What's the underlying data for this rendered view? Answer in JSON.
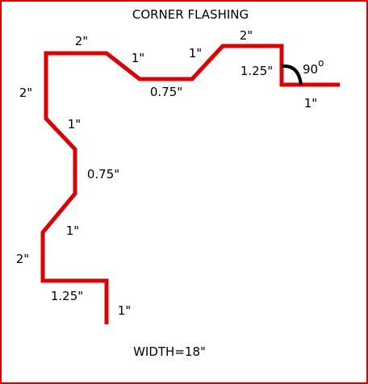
{
  "title": "CORNER FLASHING",
  "footer": "WIDTH=18\"",
  "angle_label": "90",
  "degree_symbol": "o",
  "colors": {
    "frame": "#e00000",
    "profile": "#e00000",
    "angle_arc": "#000000",
    "text": "#000000",
    "background": "#ffffff"
  },
  "dimensions": {
    "top_left_2": "2\"",
    "top_left_1": "1\"",
    "top_mid_075": "0.75\"",
    "top_mid_1": "1\"",
    "top_right_2": "2\"",
    "top_right_125": "1.25\"",
    "top_right_1": "1\"",
    "left_top_2": "2\"",
    "left_upper_1": "1\"",
    "left_mid_075": "0.75\"",
    "left_lower_1": "1\"",
    "left_bottom_2": "2\"",
    "bottom_125": "1.25\"",
    "bottom_1": "1\""
  }
}
